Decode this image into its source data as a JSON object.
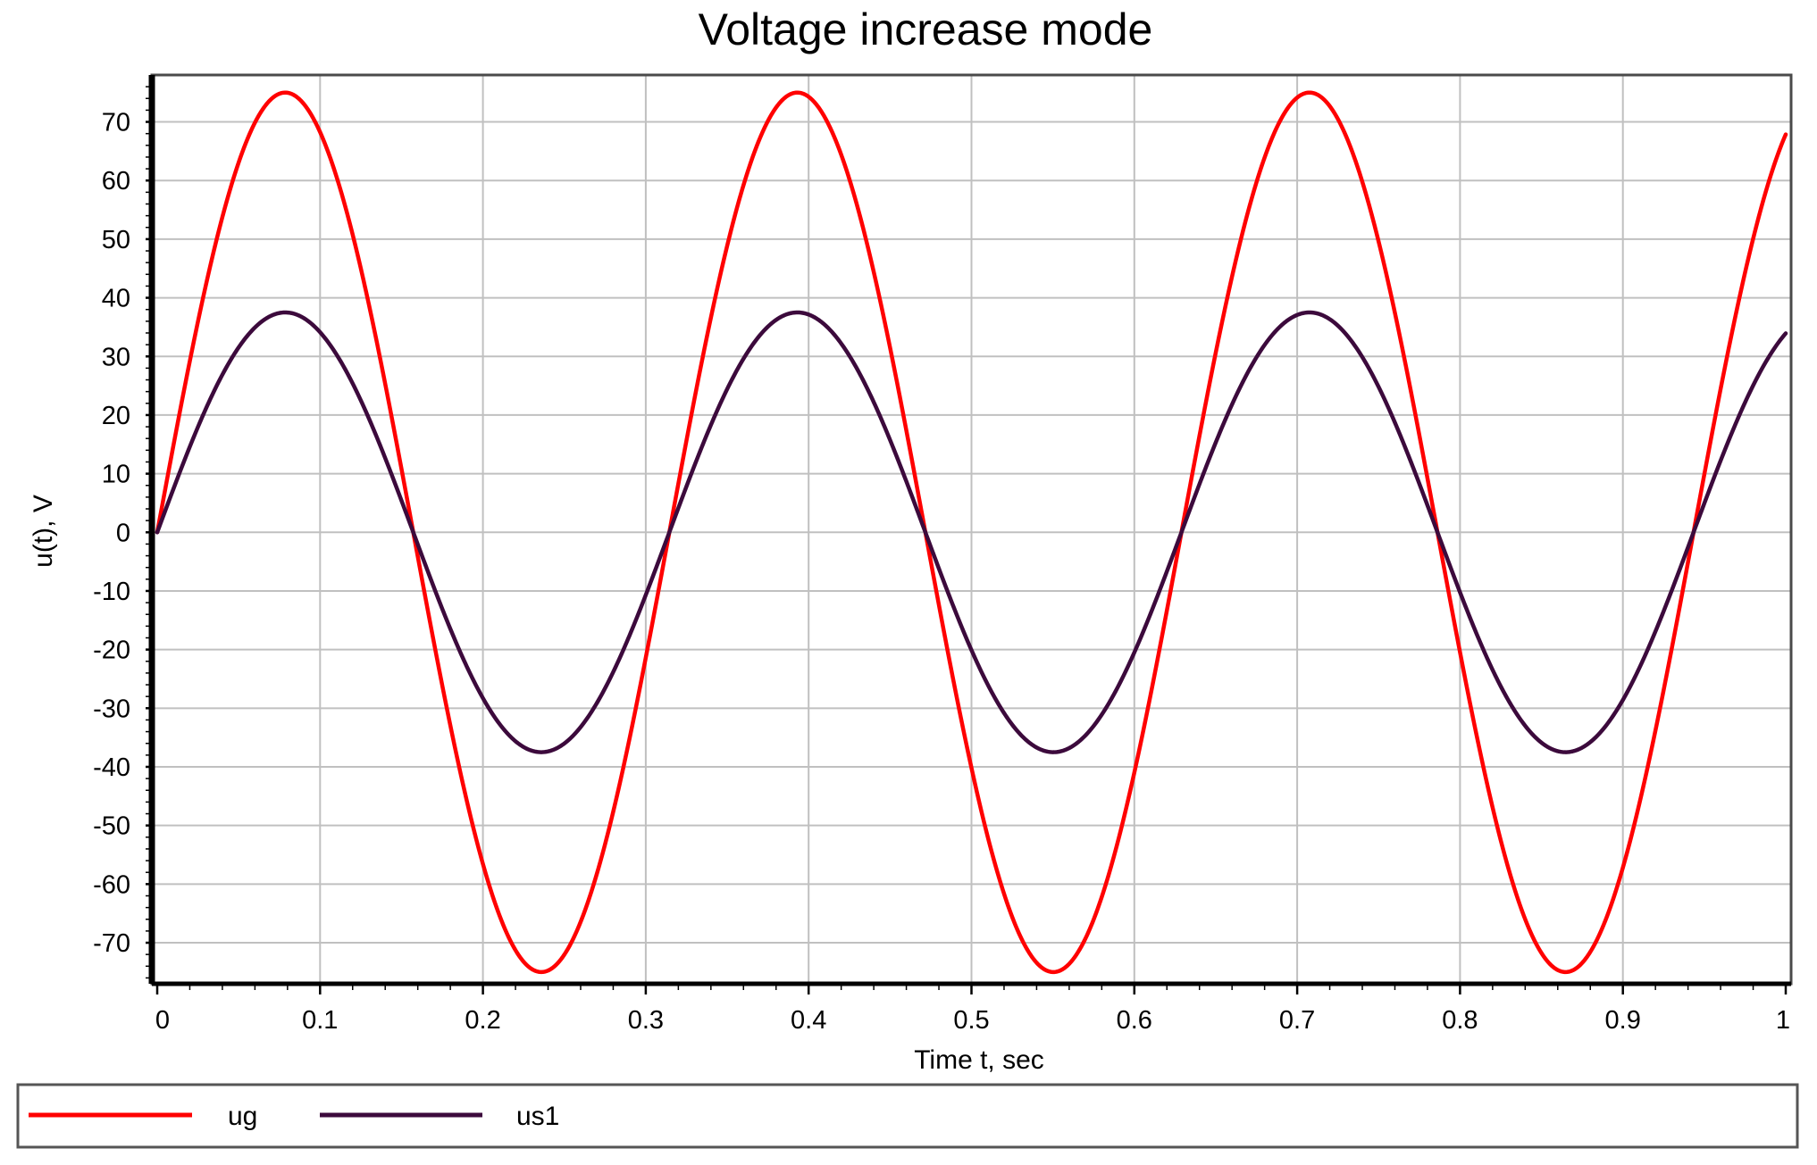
{
  "chart_data": {
    "type": "line",
    "title": "Voltage increase mode",
    "xlabel": "Time t, sec",
    "ylabel": "u(t), V",
    "xlim": [
      0,
      1
    ],
    "ylim": [
      -77,
      78
    ],
    "grid": true,
    "legend_position": "bottom",
    "x_ticks": [
      0,
      0.1,
      0.2,
      0.3,
      0.4,
      0.5,
      0.6,
      0.7,
      0.8,
      0.9,
      1
    ],
    "x_tick_labels": [
      "0",
      "0.1",
      "0.2",
      "0.3",
      "0.4",
      "0.5",
      "0.6",
      "0.7",
      "0.8",
      "0.9",
      "1"
    ],
    "y_ticks": [
      70,
      60,
      50,
      40,
      30,
      20,
      10,
      0,
      -10,
      -20,
      -30,
      -40,
      -50,
      -60,
      -70
    ],
    "y_tick_labels": [
      "70",
      "60",
      "50",
      "40",
      "30",
      "20",
      "10",
      "0",
      "-10",
      "-20",
      "-30",
      "-40",
      "-50",
      "-60",
      "-70"
    ],
    "series": [
      {
        "name": "ug",
        "color": "#ff0000",
        "function": "sine",
        "amplitude": 75,
        "frequency_hz": 3.18,
        "phase_rad": 0
      },
      {
        "name": "us1",
        "color": "#3c0a3c",
        "function": "sine",
        "amplitude": 37.5,
        "frequency_hz": 3.18,
        "phase_rad": 0
      }
    ]
  }
}
